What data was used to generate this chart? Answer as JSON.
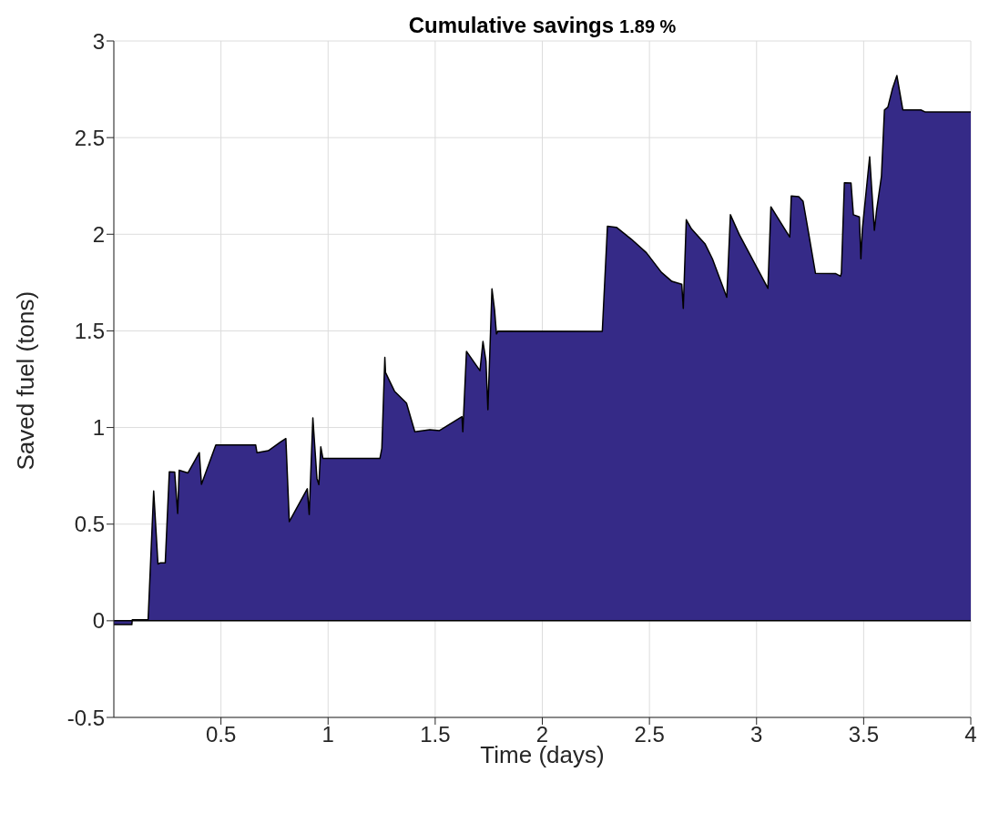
{
  "chart_data": {
    "type": "area",
    "title": "Cumulative savings",
    "annotations": [
      "1.89 %"
    ],
    "xlabel": "Time (days)",
    "ylabel": "Saved fuel (tons)",
    "x": [
      0,
      0.084,
      0.086,
      0.16,
      0.186,
      0.206,
      0.218,
      0.24,
      0.259,
      0.284,
      0.298,
      0.305,
      0.346,
      0.399,
      0.409,
      0.476,
      0.662,
      0.668,
      0.721,
      0.777,
      0.803,
      0.819,
      0.903,
      0.912,
      0.929,
      0.948,
      0.957,
      0.966,
      0.976,
      1.242,
      1.251,
      1.265,
      1.268,
      1.31,
      1.366,
      1.405,
      1.475,
      1.52,
      1.625,
      1.629,
      1.646,
      1.709,
      1.723,
      1.737,
      1.746,
      1.765,
      1.777,
      1.786,
      1.793,
      2.28,
      2.304,
      2.346,
      2.416,
      2.486,
      2.556,
      2.605,
      2.651,
      2.658,
      2.672,
      2.696,
      2.759,
      2.794,
      2.861,
      2.878,
      2.92,
      3.053,
      3.067,
      3.155,
      3.162,
      3.197,
      3.217,
      3.242,
      3.275,
      3.368,
      3.392,
      3.396,
      3.41,
      3.441,
      3.452,
      3.48,
      3.487,
      3.494,
      3.528,
      3.55,
      3.56,
      3.583,
      3.597,
      3.613,
      3.634,
      3.655,
      3.683,
      3.767,
      3.788,
      4
    ],
    "series": [
      {
        "color": "#352a87",
        "values": [
          -0.02,
          -0.02,
          0.005,
          0.005,
          0.672,
          0.294,
          0.3,
          0.3,
          0.771,
          0.77,
          0.555,
          0.779,
          0.765,
          0.87,
          0.706,
          0.91,
          0.91,
          0.87,
          0.88,
          0.924,
          0.943,
          0.513,
          0.683,
          0.55,
          1.05,
          0.737,
          0.705,
          0.9,
          0.84,
          0.84,
          0.893,
          1.363,
          1.285,
          1.188,
          1.126,
          0.978,
          0.989,
          0.984,
          1.056,
          0.978,
          1.394,
          1.294,
          1.445,
          1.344,
          1.092,
          1.717,
          1.61,
          1.484,
          1.499,
          1.497,
          2.041,
          2.036,
          1.974,
          1.904,
          1.803,
          1.756,
          1.741,
          1.616,
          2.075,
          2.028,
          1.951,
          1.873,
          1.674,
          2.101,
          1.997,
          1.72,
          2.142,
          1.985,
          2.198,
          2.195,
          2.171,
          2.013,
          1.798,
          1.797,
          1.783,
          1.8,
          2.266,
          2.265,
          2.101,
          2.09,
          1.873,
          2.028,
          2.401,
          2.02,
          2.121,
          2.3,
          2.643,
          2.658,
          2.751,
          2.821,
          2.643,
          2.643,
          2.632,
          2.632
        ]
      }
    ],
    "xlim": [
      0,
      4
    ],
    "xticks": [
      0.5,
      1,
      1.5,
      2,
      2.5,
      3,
      3.5,
      4
    ],
    "ylim": [
      -0.5,
      3
    ],
    "yticks": [
      -0.5,
      0,
      0.5,
      1,
      1.5,
      2,
      2.5,
      3
    ],
    "grid": true,
    "ref_lines": [
      {
        "axis": "y",
        "value": 0,
        "color": "#000000"
      }
    ]
  }
}
